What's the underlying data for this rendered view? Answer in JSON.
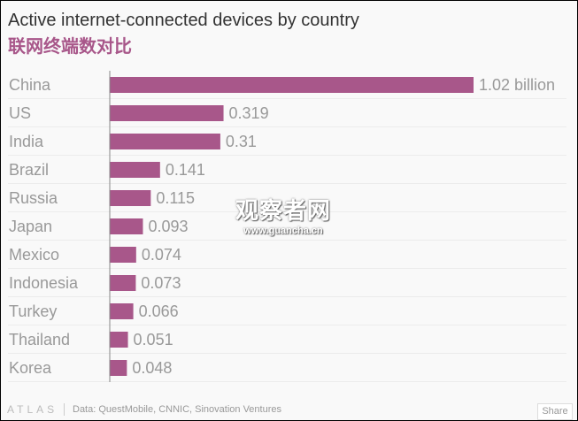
{
  "title": "Active internet-connected devices by country",
  "subtitle": "联网终端数对比",
  "chart_data": {
    "type": "bar",
    "orientation": "horizontal",
    "title": "Active internet-connected devices by country",
    "subtitle": "联网终端数对比",
    "categories": [
      "China",
      "US",
      "India",
      "Brazil",
      "Russia",
      "Japan",
      "Mexico",
      "Indonesia",
      "Turkey",
      "Thailand",
      "Korea"
    ],
    "values": [
      1.02,
      0.319,
      0.31,
      0.141,
      0.115,
      0.093,
      0.074,
      0.073,
      0.066,
      0.051,
      0.048
    ],
    "data_labels": [
      "1.02 billion",
      "0.319",
      "0.31",
      "0.141",
      "0.115",
      "0.093",
      "0.074",
      "0.073",
      "0.066",
      "0.051",
      "0.048"
    ],
    "xlim": [
      0,
      1.02
    ],
    "grid": "horizontal row lines",
    "bar_color": "#a8578a"
  },
  "footer": {
    "logo": "ATLAS",
    "source": "Data: QuestMobile, CNNIC, Sinovation Ventures",
    "share_label": "Share"
  },
  "watermark": {
    "name": "观察者网",
    "url": "www.guancha.cn"
  }
}
